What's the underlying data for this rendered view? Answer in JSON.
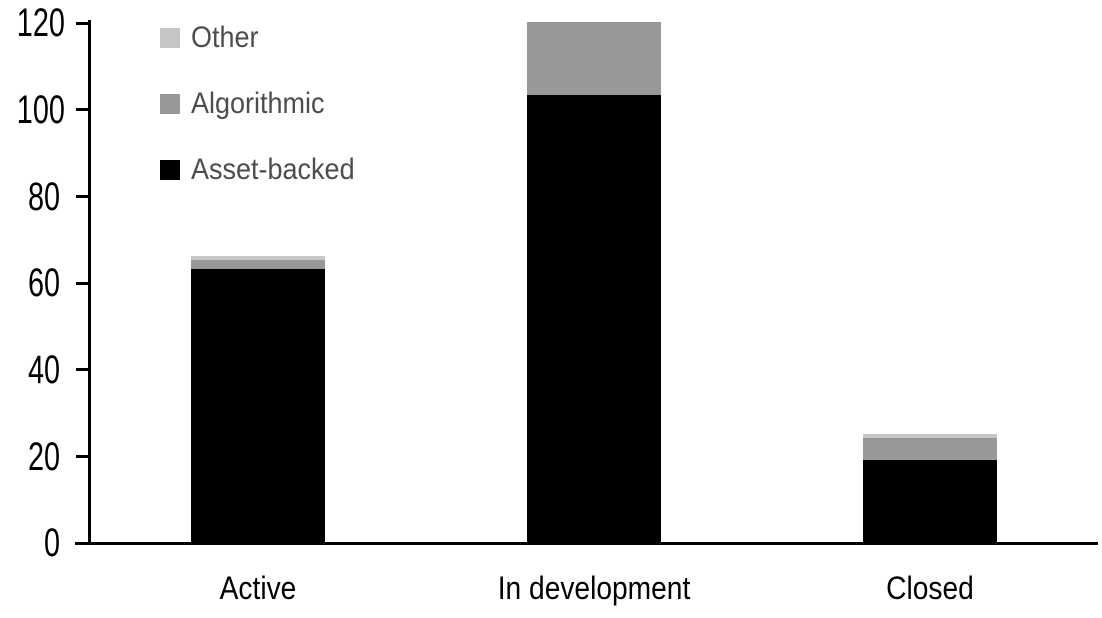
{
  "chart_data": {
    "type": "bar",
    "stacked": true,
    "title": "",
    "xlabel": "",
    "ylabel": "",
    "categories": [
      "Active",
      "In development",
      "Closed"
    ],
    "series": [
      {
        "name": "Other",
        "color": "#c6c6c6",
        "values": [
          1,
          0,
          1
        ]
      },
      {
        "name": "Algorithmic",
        "color": "#989898",
        "values": [
          2,
          17,
          5
        ]
      },
      {
        "name": "Asset-backed",
        "color": "#000000",
        "values": [
          63,
          103,
          19
        ]
      }
    ],
    "totals": [
      66,
      120,
      25
    ],
    "yticks": [
      0,
      20,
      40,
      60,
      80,
      100,
      120
    ],
    "ylim": [
      0,
      120
    ],
    "grid": false,
    "legend_position": "top-left",
    "axis_color": "#000000",
    "legend_text_color": "#4d4d4d",
    "background_color": "#ffffff"
  }
}
